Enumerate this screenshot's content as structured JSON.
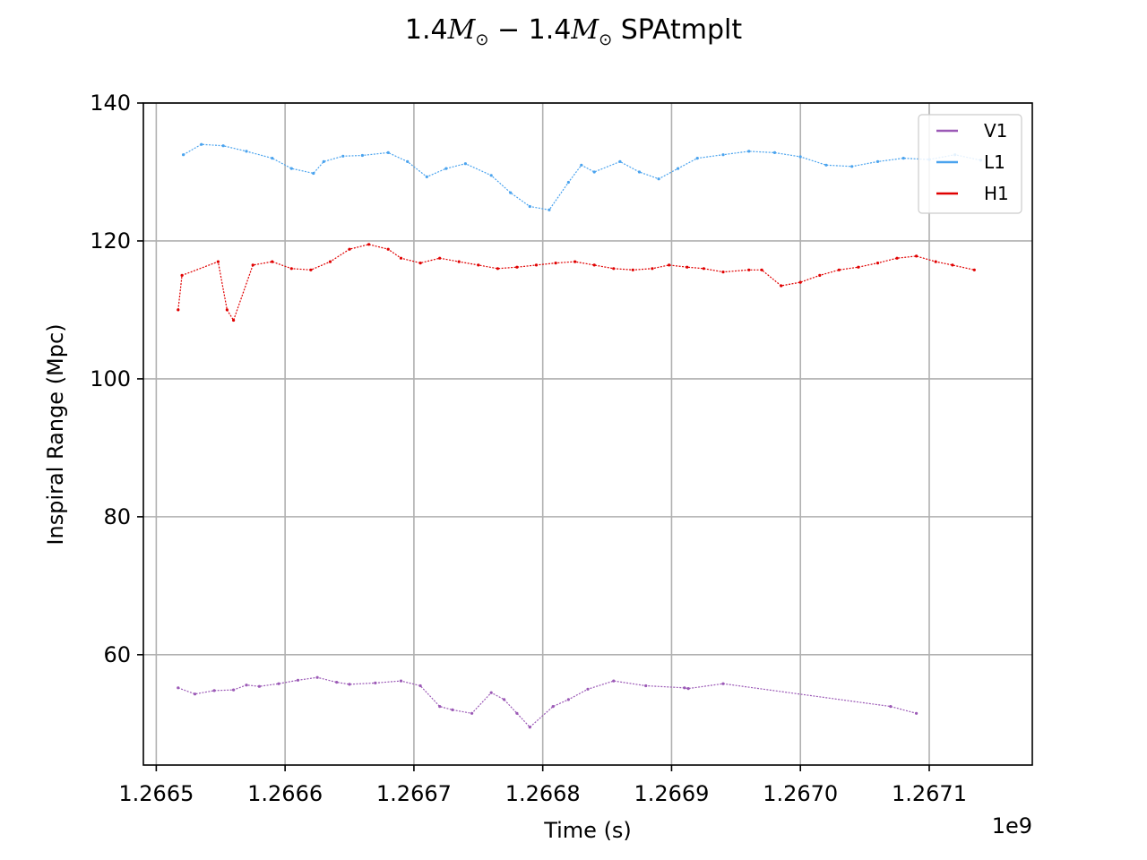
{
  "chart_data": {
    "type": "line",
    "title": "1.4M☉ − 1.4M☉ SPAtmplt",
    "title_parts": {
      "mass1": "1.4",
      "mass2": "1.4",
      "sym": "M",
      "sub": "⊙",
      "minus": "−",
      "tail": "SPAtmplt"
    },
    "xlabel": "Time (s)",
    "ylabel": "Inspiral Range (Mpc)",
    "x_offset_label": "1e9",
    "xlim": [
      1.26649,
      1.26718
    ],
    "ylim": [
      44,
      140
    ],
    "xticks": [
      1.2665,
      1.2666,
      1.2667,
      1.2668,
      1.2669,
      1.267,
      1.2671
    ],
    "xtick_labels": [
      "1.2665",
      "1.2666",
      "1.2667",
      "1.2668",
      "1.2669",
      "1.2670",
      "1.2671"
    ],
    "yticks": [
      60,
      80,
      100,
      120,
      140
    ],
    "ytick_labels": [
      "60",
      "80",
      "100",
      "120",
      "140"
    ],
    "grid": true,
    "legend_position": "top-right",
    "series": [
      {
        "name": "V1",
        "color": "#9b59b6",
        "points": [
          [
            1.266517,
            55.2
          ],
          [
            1.26653,
            54.3
          ],
          [
            1.266545,
            54.8
          ],
          [
            1.26656,
            54.9
          ],
          [
            1.26657,
            55.6
          ],
          [
            1.26658,
            55.4
          ],
          [
            1.266595,
            55.8
          ],
          [
            1.26661,
            56.3
          ],
          [
            1.266625,
            56.7
          ],
          [
            1.26664,
            56.0
          ],
          [
            1.26665,
            55.7
          ],
          [
            1.26667,
            55.9
          ],
          [
            1.26669,
            56.2
          ],
          [
            1.266705,
            55.5
          ],
          [
            1.26672,
            52.5
          ],
          [
            1.26673,
            52.0
          ],
          [
            1.266745,
            51.5
          ],
          [
            1.26676,
            54.5
          ],
          [
            1.26677,
            53.5
          ],
          [
            1.26678,
            51.5
          ],
          [
            1.26679,
            49.5
          ],
          [
            1.266808,
            52.5
          ],
          [
            1.26682,
            53.5
          ],
          [
            1.266835,
            55.0
          ],
          [
            1.266855,
            56.2
          ],
          [
            1.26688,
            55.5
          ],
          [
            1.26691,
            55.2
          ],
          [
            1.26694,
            55.8
          ],
          [
            1.26707,
            52.5
          ],
          [
            1.26709,
            51.5
          ],
          [
            1.266913,
            55.1
          ]
        ]
      },
      {
        "name": "L1",
        "color": "#4aa3ee",
        "points": [
          [
            1.266521,
            132.5
          ],
          [
            1.266535,
            134.0
          ],
          [
            1.266552,
            133.8
          ],
          [
            1.26657,
            133.0
          ],
          [
            1.26659,
            132.0
          ],
          [
            1.266605,
            130.5
          ],
          [
            1.266622,
            129.8
          ],
          [
            1.26663,
            131.5
          ],
          [
            1.266645,
            132.3
          ],
          [
            1.26666,
            132.4
          ],
          [
            1.26668,
            132.8
          ],
          [
            1.266695,
            131.5
          ],
          [
            1.26671,
            129.3
          ],
          [
            1.266725,
            130.5
          ],
          [
            1.26674,
            131.2
          ],
          [
            1.26676,
            129.5
          ],
          [
            1.266775,
            127.0
          ],
          [
            1.26679,
            125.0
          ],
          [
            1.266805,
            124.5
          ],
          [
            1.26682,
            128.5
          ],
          [
            1.26683,
            131.0
          ],
          [
            1.26684,
            130.0
          ],
          [
            1.26686,
            131.5
          ],
          [
            1.266875,
            130.0
          ],
          [
            1.26689,
            129.0
          ],
          [
            1.266905,
            130.5
          ],
          [
            1.26692,
            132.0
          ],
          [
            1.26694,
            132.5
          ],
          [
            1.26696,
            133.0
          ],
          [
            1.26698,
            132.8
          ],
          [
            1.267,
            132.2
          ],
          [
            1.26702,
            131.0
          ],
          [
            1.26704,
            130.8
          ],
          [
            1.26706,
            131.5
          ],
          [
            1.26708,
            132.0
          ],
          [
            1.2671,
            131.8
          ],
          [
            1.26712,
            132.5
          ],
          [
            1.26714,
            131.7
          ]
        ]
      },
      {
        "name": "H1",
        "color": "#e00000",
        "points": [
          [
            1.266517,
            110.0
          ],
          [
            1.26652,
            115.0
          ],
          [
            1.266548,
            117.0
          ],
          [
            1.266555,
            110.0
          ],
          [
            1.26656,
            108.5
          ],
          [
            1.266575,
            116.5
          ],
          [
            1.26659,
            117.0
          ],
          [
            1.266605,
            116.0
          ],
          [
            1.26662,
            115.8
          ],
          [
            1.266635,
            117.0
          ],
          [
            1.26665,
            118.8
          ],
          [
            1.266665,
            119.5
          ],
          [
            1.26668,
            118.8
          ],
          [
            1.26669,
            117.5
          ],
          [
            1.266705,
            116.8
          ],
          [
            1.26672,
            117.5
          ],
          [
            1.266735,
            117.0
          ],
          [
            1.26675,
            116.5
          ],
          [
            1.266765,
            116.0
          ],
          [
            1.26678,
            116.2
          ],
          [
            1.266795,
            116.5
          ],
          [
            1.26681,
            116.8
          ],
          [
            1.266825,
            117.0
          ],
          [
            1.26684,
            116.5
          ],
          [
            1.266855,
            116.0
          ],
          [
            1.26687,
            115.8
          ],
          [
            1.266885,
            116.0
          ],
          [
            1.266898,
            116.5
          ],
          [
            1.266912,
            116.2
          ],
          [
            1.266925,
            116.0
          ],
          [
            1.26694,
            115.5
          ],
          [
            1.26696,
            115.8
          ],
          [
            1.26697,
            115.8
          ],
          [
            1.266985,
            113.5
          ],
          [
            1.267,
            114.0
          ],
          [
            1.267015,
            115.0
          ],
          [
            1.26703,
            115.8
          ],
          [
            1.267045,
            116.2
          ],
          [
            1.26706,
            116.8
          ],
          [
            1.267075,
            117.5
          ],
          [
            1.26709,
            117.8
          ],
          [
            1.267105,
            117.0
          ],
          [
            1.267118,
            116.5
          ],
          [
            1.267135,
            115.8
          ]
        ]
      }
    ]
  }
}
